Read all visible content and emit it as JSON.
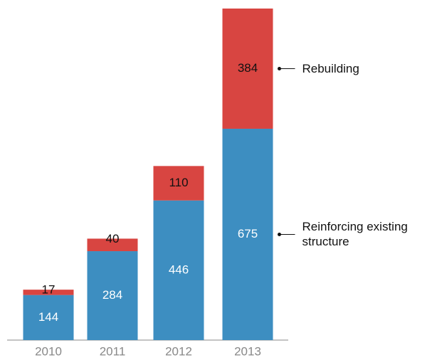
{
  "chart_data": {
    "type": "stacked-bar",
    "categories": [
      "2010",
      "2011",
      "2012",
      "2013"
    ],
    "series": [
      {
        "name": "Reinforcing existing structure",
        "color": "#3d8ec1",
        "values": [
          144,
          284,
          446,
          675
        ]
      },
      {
        "name": "Rebuilding",
        "color": "#d84541",
        "values": [
          17,
          40,
          110,
          384
        ]
      }
    ]
  }
}
